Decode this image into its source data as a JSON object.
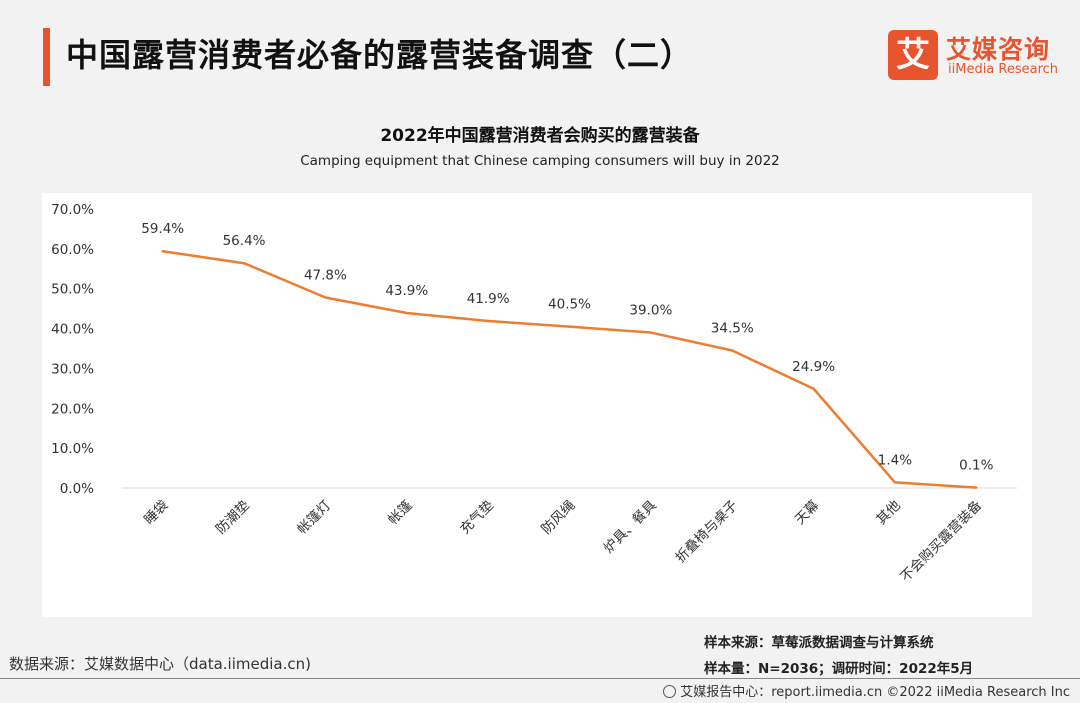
{
  "header": {
    "title": "中国露营消费者必备的露营装备调查（二）",
    "accent_color": "#e8542e"
  },
  "logo": {
    "mark": "艾",
    "cn": "艾媒咨询",
    "en": "iiMedia Research"
  },
  "chart_data": {
    "type": "line",
    "title": "2022年中国露营消费者会购买的露营装备",
    "subtitle": "Camping equipment that Chinese camping consumers will buy in 2022",
    "categories": [
      "睡袋",
      "防潮垫",
      "帐篷灯",
      "帐篷",
      "充气垫",
      "防风绳",
      "炉具、餐具",
      "折叠椅与桌子",
      "天幕",
      "其他",
      "不会购买露营装备"
    ],
    "series": [
      {
        "values": [
          59.4,
          56.4,
          47.8,
          43.9,
          41.9,
          40.5,
          39.0,
          34.5,
          24.9,
          1.4,
          0.1
        ],
        "value_labels": [
          "59.4%",
          "56.4%",
          "47.8%",
          "43.9%",
          "41.9%",
          "40.5%",
          "39.0%",
          "34.5%",
          "24.9%",
          "1.4%",
          "0.1%"
        ],
        "color": "#ed7d31"
      }
    ],
    "y_ticks": [
      "0.0%",
      "10.0%",
      "20.0%",
      "30.0%",
      "40.0%",
      "50.0%",
      "60.0%",
      "70.0%"
    ],
    "ylim": [
      0,
      70
    ],
    "grid": false
  },
  "footer": {
    "source": "数据来源：艾媒数据中心（data.iimedia.cn)",
    "sample_source": "样本来源：草莓派数据调查与计算系统",
    "sample_size": "样本量：N=2036；调研时间：2022年5月",
    "bottom": "艾媒报告中心：report.iimedia.cn ©2022 iiMedia Research Inc"
  }
}
